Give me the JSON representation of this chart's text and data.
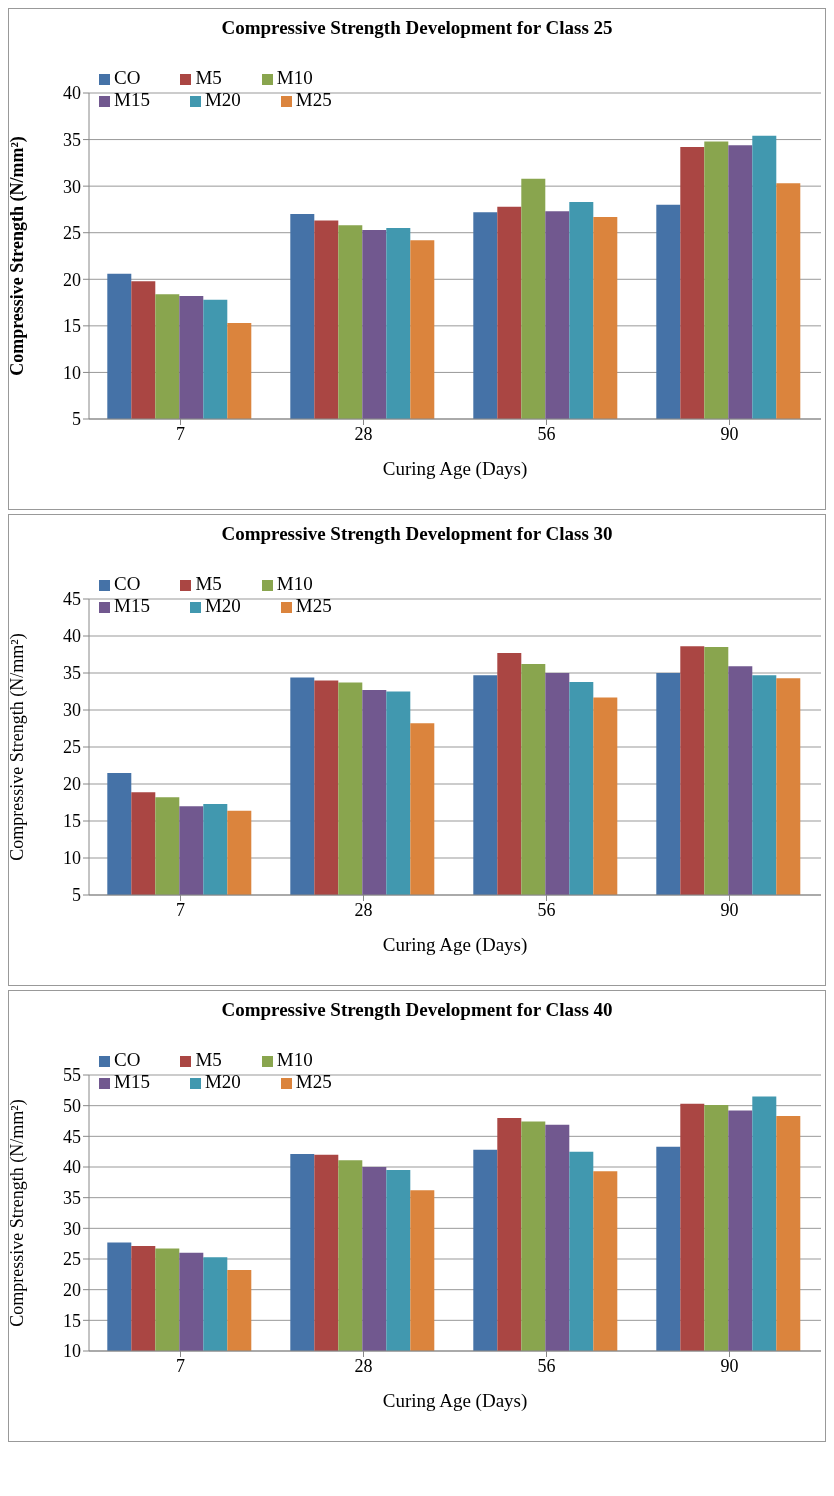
{
  "chart_data": [
    {
      "type": "bar",
      "title": "Compressive Strength Development for Class 25",
      "xlabel": "Curing Age  (Days)",
      "ylabel": "Compressive Strength  (N/mm²)",
      "categories": [
        "7",
        "28",
        "56",
        "90"
      ],
      "ylim": [
        5,
        40
      ],
      "yticks": [
        5,
        10,
        15,
        20,
        25,
        30,
        35,
        40
      ],
      "grid": "y",
      "legend": "top left",
      "series": [
        {
          "name": "CO",
          "color": "#4572a7",
          "values": [
            20.6,
            27.0,
            27.2,
            28.0
          ]
        },
        {
          "name": "M5",
          "color": "#aa4643",
          "values": [
            19.8,
            26.3,
            27.8,
            34.2
          ]
        },
        {
          "name": "M10",
          "color": "#89a54e",
          "values": [
            18.4,
            25.8,
            30.8,
            34.8
          ]
        },
        {
          "name": "M15",
          "color": "#71588f",
          "values": [
            18.2,
            25.3,
            27.3,
            34.4
          ]
        },
        {
          "name": "M20",
          "color": "#4198af",
          "values": [
            17.8,
            25.5,
            28.3,
            35.4
          ]
        },
        {
          "name": "M25",
          "color": "#db843d",
          "values": [
            15.3,
            24.2,
            26.7,
            30.3
          ]
        }
      ]
    },
    {
      "type": "bar",
      "title": "Compressive Strength Development  for Class 30",
      "xlabel": "Curing Age  (Days)",
      "ylabel": "Compressive Strength  (N/mm²)",
      "categories": [
        "7",
        "28",
        "56",
        "90"
      ],
      "ylim": [
        5,
        45
      ],
      "yticks": [
        5,
        10,
        15,
        20,
        25,
        30,
        35,
        40,
        45
      ],
      "grid": "y",
      "legend": "top left",
      "series": [
        {
          "name": "CO",
          "color": "#4572a7",
          "values": [
            21.5,
            34.4,
            34.7,
            35.0
          ]
        },
        {
          "name": "M5",
          "color": "#aa4643",
          "values": [
            18.9,
            34.0,
            37.7,
            38.6
          ]
        },
        {
          "name": "M10",
          "color": "#89a54e",
          "values": [
            18.2,
            33.7,
            36.2,
            38.5
          ]
        },
        {
          "name": "M15",
          "color": "#71588f",
          "values": [
            17.0,
            32.7,
            35.0,
            35.9
          ]
        },
        {
          "name": "M20",
          "color": "#4198af",
          "values": [
            17.3,
            32.5,
            33.8,
            34.7
          ]
        },
        {
          "name": "M25",
          "color": "#db843d",
          "values": [
            16.4,
            28.2,
            31.7,
            34.3
          ]
        }
      ]
    },
    {
      "type": "bar",
      "title": "Compressive Strength Development  for Class 40",
      "xlabel": "Curing Age  (Days)",
      "ylabel": "Compressive Strength  (N/mm²)",
      "categories": [
        "7",
        "28",
        "56",
        "90"
      ],
      "ylim": [
        10,
        55
      ],
      "yticks": [
        10,
        15,
        20,
        25,
        30,
        35,
        40,
        45,
        50,
        55
      ],
      "grid": "y",
      "legend": "top left",
      "series": [
        {
          "name": "CO",
          "color": "#4572a7",
          "values": [
            27.7,
            42.1,
            42.8,
            43.3
          ]
        },
        {
          "name": "M5",
          "color": "#aa4643",
          "values": [
            27.1,
            42.0,
            48.0,
            50.3
          ]
        },
        {
          "name": "M10",
          "color": "#89a54e",
          "values": [
            26.7,
            41.1,
            47.4,
            50.1
          ]
        },
        {
          "name": "M15",
          "color": "#71588f",
          "values": [
            26.0,
            40.0,
            46.9,
            49.2
          ]
        },
        {
          "name": "M20",
          "color": "#4198af",
          "values": [
            25.3,
            39.5,
            42.5,
            51.5
          ]
        },
        {
          "name": "M25",
          "color": "#db843d",
          "values": [
            23.2,
            36.2,
            39.3,
            48.3
          ]
        }
      ]
    }
  ]
}
